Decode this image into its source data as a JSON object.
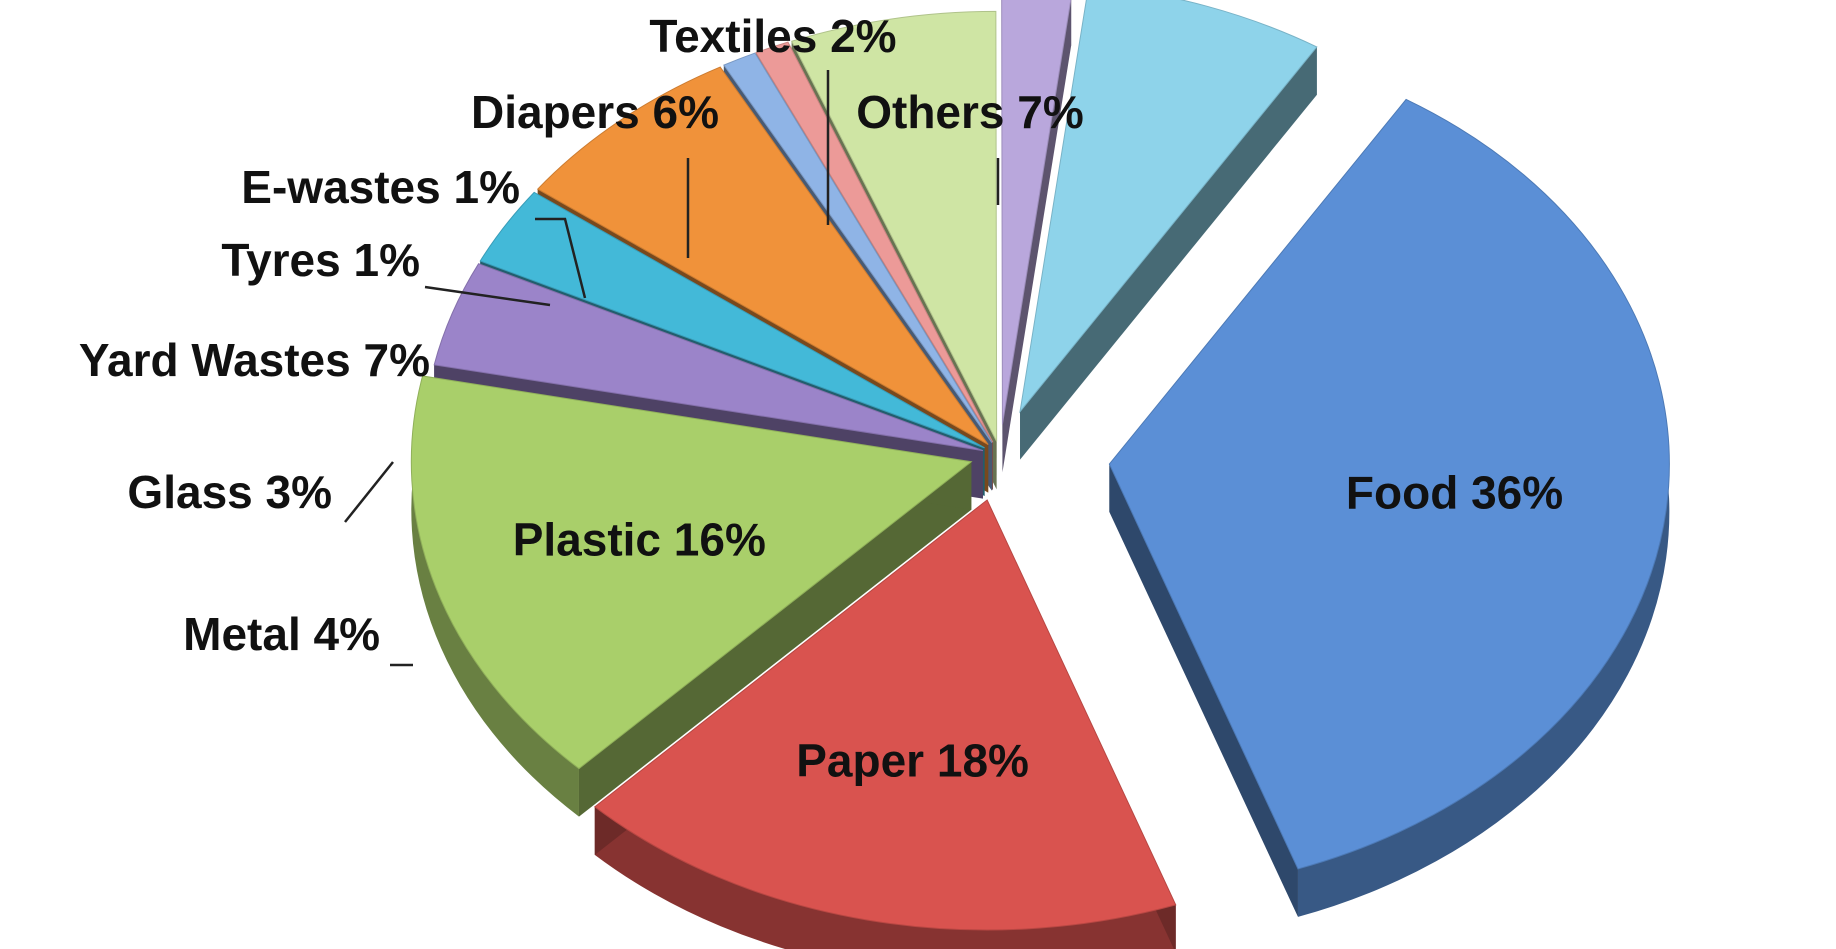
{
  "chart_data": {
    "type": "pie",
    "style": "3d-exploded",
    "slices": [
      {
        "label": "Food",
        "value": 36,
        "display": "Food 36%",
        "color": "#5b8fd6"
      },
      {
        "label": "Paper",
        "value": 18,
        "display": "Paper 18%",
        "color": "#d9534f"
      },
      {
        "label": "Plastic",
        "value": 16,
        "display": "Plastic 16%",
        "color": "#a9cf6a"
      },
      {
        "label": "Metal",
        "value": 4,
        "display": "Metal 4%",
        "color": "#9b84c9"
      },
      {
        "label": "Glass",
        "value": 3,
        "display": "Glass 3%",
        "color": "#43b9d8"
      },
      {
        "label": "Yard Wastes",
        "value": 7,
        "display": "Yard Wastes 7%",
        "color": "#f0923a"
      },
      {
        "label": "Tyres",
        "value": 1,
        "display": "Tyres 1%",
        "color": "#8fb4e6"
      },
      {
        "label": "E-wastes",
        "value": 1,
        "display": "E-wastes 1%",
        "color": "#ec9a98"
      },
      {
        "label": "Diapers",
        "value": 6,
        "display": "Diapers 6%",
        "color": "#cfe5a4"
      },
      {
        "label": "Textiles",
        "value": 2,
        "display": "Textiles 2%",
        "color": "#b9a7dc"
      },
      {
        "label": "Others",
        "value": 7,
        "display": "Others 7%",
        "color": "#8ed3ea"
      }
    ]
  }
}
